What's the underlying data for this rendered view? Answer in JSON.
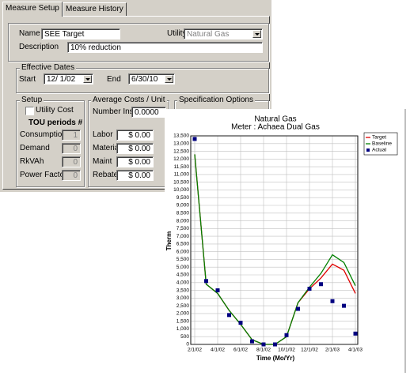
{
  "tabs": [
    "Measure Setup",
    "Measure History"
  ],
  "form": {
    "name_label": "Name",
    "name": "SEE Target",
    "utility_label": "Utility",
    "utility": "Natural Gas",
    "description_label": "Description",
    "description": "10% reduction"
  },
  "effective_dates": {
    "title": "Effective Dates",
    "start_label": "Start",
    "start": "12/ 1/02",
    "end_label": "End",
    "end": "6/30/10"
  },
  "setup": {
    "title": "Setup",
    "utility_cost": "Utility Cost",
    "tou": "TOU periods #",
    "rows": [
      [
        "Consumption",
        "1"
      ],
      [
        "Demand",
        "0"
      ],
      [
        "RkVAh",
        "0"
      ],
      [
        "Power Factor",
        "0"
      ]
    ]
  },
  "average_costs": {
    "title": "Average Costs / Unit",
    "number_label": "Number Inst.",
    "number": "0.0000",
    "rows": [
      [
        "Labor",
        "$ 0.00"
      ],
      [
        "Material",
        "$ 0.00"
      ],
      [
        "Maint",
        "$ 0.00"
      ],
      [
        "Rebate",
        "$ 0.00"
      ]
    ]
  },
  "specification": {
    "title": "Specification Options"
  },
  "chart": {
    "type": "line",
    "title": "Natural Gas",
    "subtitle": "Meter : Achaea Dual Gas",
    "x_label": "Time (Mo/Yr)",
    "y_label": "Therm",
    "categories": [
      "2/1/02",
      null,
      "4/1/02",
      null,
      "6/1/02",
      null,
      "8/1/02",
      null,
      "10/1/02",
      null,
      "12/1/02",
      null,
      "2/1/03",
      null,
      "4/1/03"
    ],
    "series": [
      {
        "name": "Target",
        "color": "#e00000",
        "type": "line",
        "values": [
          12300,
          3900,
          3300,
          2200,
          1300,
          300,
          0,
          0,
          500,
          2700,
          3600,
          4300,
          5200,
          4800,
          3300
        ]
      },
      {
        "name": "Baseline",
        "color": "#008000",
        "type": "line",
        "values": [
          12300,
          3900,
          3300,
          2200,
          1300,
          300,
          0,
          0,
          500,
          2700,
          3700,
          4600,
          5800,
          5300,
          3800
        ]
      },
      {
        "name": "Actual",
        "color": "#000080",
        "type": "scatter",
        "values": [
          13300,
          4100,
          3500,
          1900,
          1400,
          200,
          0,
          0,
          600,
          2300,
          3600,
          3900,
          2800,
          2500,
          700
        ]
      }
    ],
    "ylim": [
      0,
      13500
    ],
    "yticks": [
      0,
      500,
      {
        "value": 1000,
        "label": "1,000"
      },
      {
        "value": 1500,
        "label": "1,500"
      },
      {
        "value": 2000,
        "label": "2,000"
      },
      {
        "value": 2500,
        "label": "2,500"
      },
      {
        "value": 3000,
        "label": "3,000"
      },
      {
        "value": 3500,
        "label": "3,500"
      },
      {
        "value": 4000,
        "label": "4,000"
      },
      {
        "value": 4500,
        "label": "4,500"
      },
      {
        "value": 5000,
        "label": "5,000"
      },
      {
        "value": 5500,
        "label": "5,500"
      },
      {
        "value": 6000,
        "label": "6,000"
      },
      {
        "value": 6500,
        "label": "6,500"
      },
      {
        "value": 7000,
        "label": "7,000"
      },
      {
        "value": 7500,
        "label": "7,500"
      },
      {
        "value": 8000,
        "label": "8,000"
      },
      {
        "value": 8500,
        "label": "8,500"
      },
      {
        "value": 9000,
        "label": "9,000"
      },
      {
        "value": 9500,
        "label": "9,500"
      },
      {
        "value": 10000,
        "label": "10,000"
      },
      {
        "value": 10500,
        "label": "10,500"
      },
      {
        "value": 11000,
        "label": "11,000"
      },
      {
        "value": 11500,
        "label": "11,500"
      },
      {
        "value": 12000,
        "label": "12,000"
      },
      {
        "value": 12500,
        "label": "12,500"
      },
      {
        "value": 13000,
        "label": "13,000"
      },
      {
        "value": 13500,
        "label": "13,500"
      }
    ],
    "grid": true,
    "legend": "top-right"
  }
}
